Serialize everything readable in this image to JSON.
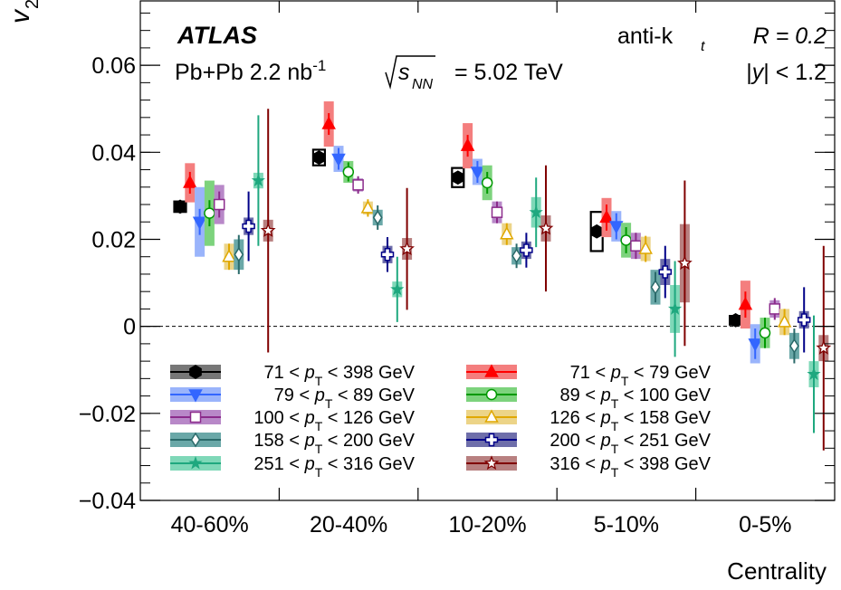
{
  "chart_data": {
    "type": "scatter",
    "ylabel": "v",
    "ylabel_sub": "2",
    "xlabel": "Centrality",
    "ylim": [
      -0.04,
      0.075
    ],
    "yticks": [
      -0.04,
      -0.02,
      0,
      0.02,
      0.04,
      0.06
    ],
    "ytick_labels": [
      "−0.04",
      "−0.02",
      "0",
      "0.02",
      "0.04",
      "0.06"
    ],
    "categories": [
      "40-60%",
      "20-40%",
      "10-20%",
      "5-10%",
      "0-5%"
    ],
    "zero_line": "dashed",
    "annotations": {
      "experiment": "ATLAS",
      "dataset": "Pb+Pb 2.2 nb",
      "dataset_sup": "-1",
      "sqrt": "s",
      "sqrt_sub": "NN",
      "energy": "= 5.02 TeV",
      "jet_alg": "anti-k",
      "jet_alg_sub": "t",
      "radius": "R = 0.2",
      "rapidity_pre": "|",
      "rapidity_var": "y",
      "rapidity_post": "| < 1.2"
    },
    "series": [
      {
        "name": "71 < pT < 398 GeV",
        "pre": "71 <",
        "post": "< 398 GeV",
        "color": "#000000",
        "band": "#777777",
        "marker": "hexagon-filled",
        "values": [
          0.0275,
          0.0388,
          0.0342,
          0.0218,
          0.0014
        ],
        "stat": [
          0.0008,
          0.0008,
          0.0008,
          0.0008,
          0.0005
        ],
        "syst": [
          0.0012,
          0.0018,
          0.0022,
          0.0045,
          0.001
        ]
      },
      {
        "name": "71 < pT < 79 GeV",
        "pre": "71 <",
        "post": "<   79 GeV",
        "color": "#ff0000",
        "band": "#f47e7e",
        "marker": "triangle-up-filled",
        "values": [
          0.033,
          0.0465,
          0.0415,
          0.025,
          0.005
        ],
        "stat": [
          0.0025,
          0.0025,
          0.0025,
          0.003,
          0.003
        ],
        "syst": [
          0.0045,
          0.0052,
          0.0052,
          0.0045,
          0.0055
        ]
      },
      {
        "name": "79 < pT < 89 GeV",
        "pre": "79 <",
        "post": "<   89 GeV",
        "color": "#3366ff",
        "band": "#9ab4fb",
        "marker": "triangle-down-filled",
        "values": [
          0.024,
          0.0385,
          0.0355,
          0.023,
          -0.004
        ],
        "stat": [
          0.003,
          0.0025,
          0.0025,
          0.003,
          0.0035
        ],
        "syst": [
          0.008,
          0.003,
          0.003,
          0.0035,
          0.0045
        ]
      },
      {
        "name": "89 < pT < 100 GeV",
        "pre": "89 <",
        "post": "< 100 GeV",
        "color": "#009900",
        "band": "#7dd37d",
        "marker": "circle-open",
        "values": [
          0.026,
          0.0355,
          0.033,
          0.0198,
          -0.0015
        ],
        "stat": [
          0.003,
          0.0022,
          0.0025,
          0.003,
          0.0035
        ],
        "syst": [
          0.0075,
          0.0025,
          0.004,
          0.004,
          0.0035
        ]
      },
      {
        "name": "100 < pT < 126 GeV",
        "pre": "100 <",
        "post": "< 126 GeV",
        "color": "#8b2b8b",
        "band": "#b888c8",
        "marker": "square-open",
        "values": [
          0.028,
          0.0325,
          0.0262,
          0.0185,
          0.004
        ],
        "stat": [
          0.003,
          0.002,
          0.0025,
          0.003,
          0.0025
        ],
        "syst": [
          0.0045,
          0.0015,
          0.0025,
          0.003,
          0.002
        ]
      },
      {
        "name": "126 < pT < 158 GeV",
        "pre": "126 <",
        "post": "< 158 GeV",
        "color": "#e0a800",
        "band": "#ecd488",
        "marker": "triangle-up-open",
        "values": [
          0.016,
          0.0272,
          0.0212,
          0.0178,
          0.001
        ],
        "stat": [
          0.003,
          0.002,
          0.0025,
          0.003,
          0.003
        ],
        "syst": [
          0.003,
          0.0015,
          0.0025,
          0.0028,
          0.003
        ]
      },
      {
        "name": "158 < pT < 200 GeV",
        "pre": "158 <",
        "post": "< 200 GeV",
        "color": "#2a6a6a",
        "band": "#6aa8a8",
        "marker": "diamond-open",
        "values": [
          0.0165,
          0.025,
          0.0162,
          0.009,
          -0.0045
        ],
        "stat": [
          0.0045,
          0.0028,
          0.0028,
          0.0035,
          0.004
        ],
        "syst": [
          0.0035,
          0.0018,
          0.002,
          0.004,
          0.003
        ]
      },
      {
        "name": "200 < pT < 251 GeV",
        "pre": "200 <",
        "post": "< 251 GeV",
        "color": "#000088",
        "band": "#6e6eaa",
        "marker": "cross-open",
        "values": [
          0.023,
          0.0165,
          0.0175,
          0.0125,
          0.0015
        ],
        "stat": [
          0.008,
          0.004,
          0.004,
          0.006,
          0.0075
        ],
        "syst": [
          0.002,
          0.002,
          0.002,
          0.003,
          0.002
        ]
      },
      {
        "name": "251 < pT < 316 GeV",
        "pre": "251 <",
        "post": "< 316 GeV",
        "color": "#1fa87f",
        "band": "#7fd8b8",
        "marker": "star-filled",
        "values": [
          0.0335,
          0.0085,
          0.0262,
          0.004,
          -0.011
        ],
        "stat": [
          0.015,
          0.0075,
          0.008,
          0.011,
          0.0135
        ],
        "syst": [
          0.0018,
          0.0018,
          0.0035,
          0.0055,
          0.003
        ]
      },
      {
        "name": "316 < pT < 398 GeV",
        "pre": "316 <",
        "post": "< 398 GeV",
        "color": "#800000",
        "band": "#b88080",
        "marker": "star-open",
        "values": [
          0.022,
          0.0178,
          0.0225,
          0.0145,
          -0.005
        ],
        "stat": [
          0.028,
          0.014,
          0.0145,
          0.019,
          0.0235
        ],
        "syst": [
          0.0025,
          0.0025,
          0.003,
          0.009,
          0.003
        ]
      }
    ]
  }
}
